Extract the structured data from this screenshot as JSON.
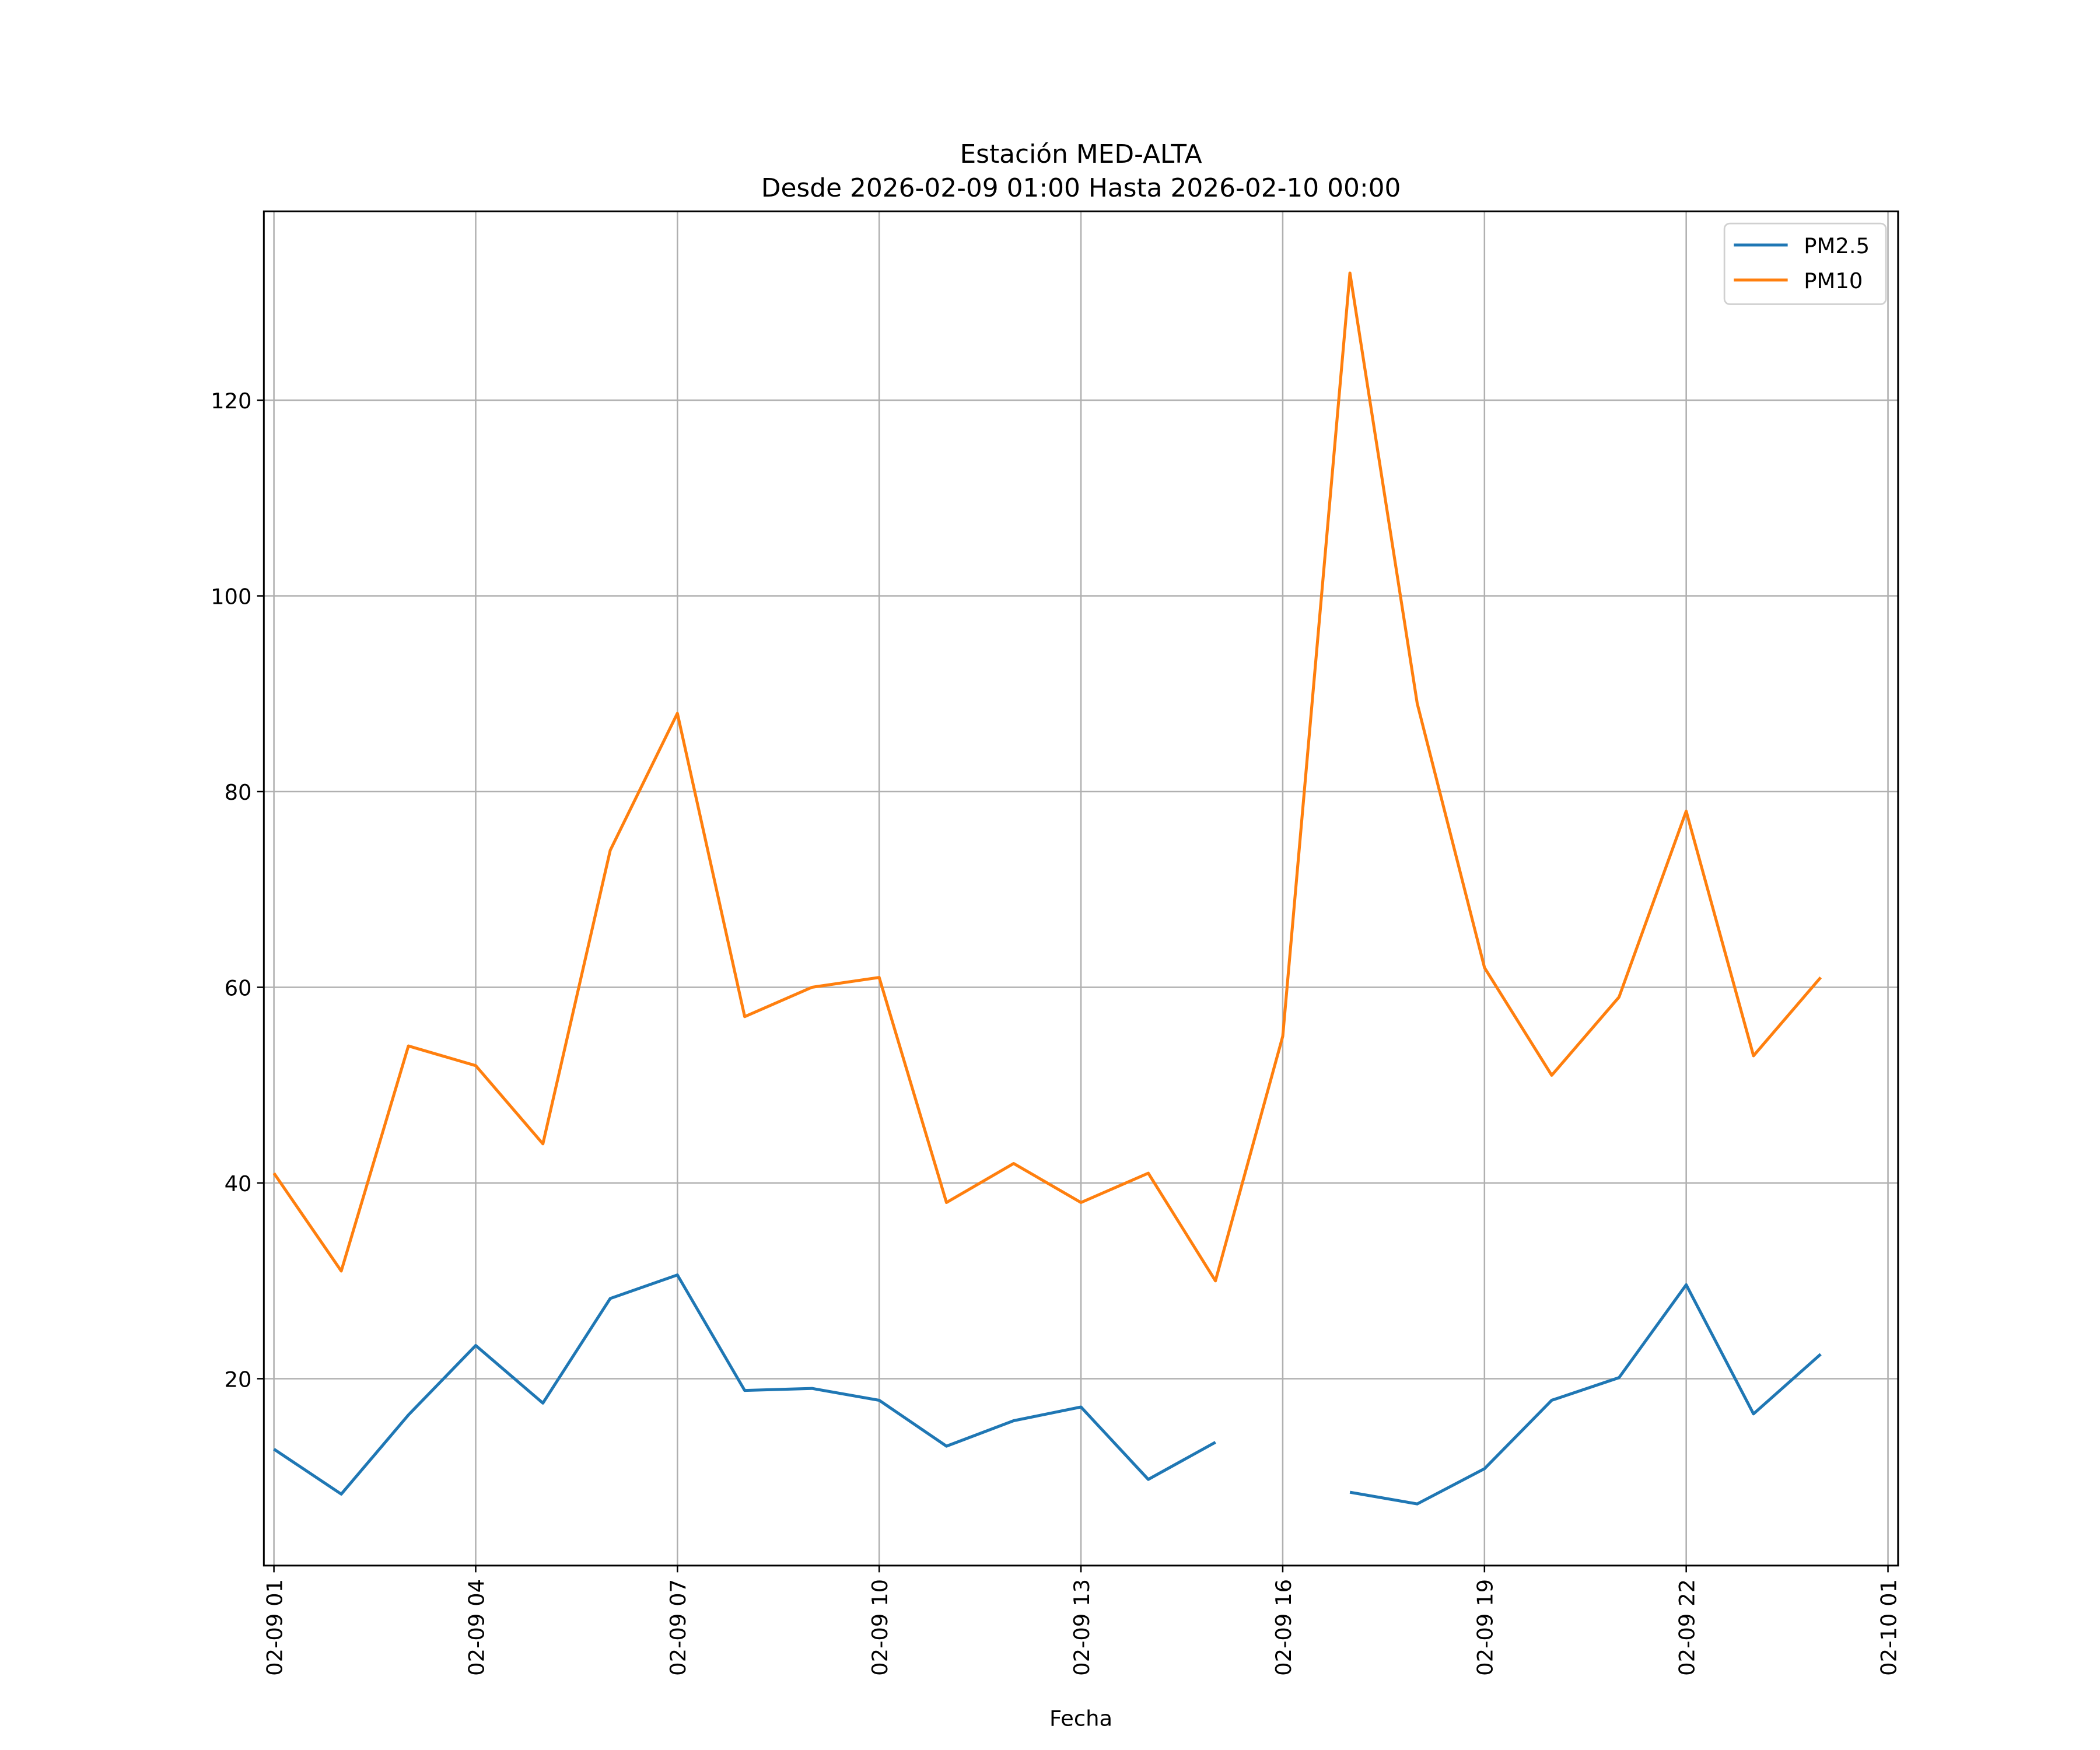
{
  "chart_data": {
    "type": "line",
    "title": "Estación MED-ALTA",
    "subtitle": "Desde 2026-02-09 01:00 Hasta 2026-02-10 00:00",
    "xlabel": "Fecha",
    "ylabel": "",
    "x_hours": [
      1,
      2,
      3,
      4,
      5,
      6,
      7,
      8,
      9,
      10,
      11,
      12,
      13,
      14,
      15,
      16,
      17,
      18,
      19,
      20,
      21,
      22,
      23,
      24
    ],
    "xlim": [
      0.85,
      25.15
    ],
    "ylim": [
      0.9,
      139.3
    ],
    "grid": true,
    "legend_position": "top-right",
    "xticks": [
      {
        "hour": 1,
        "label": "02-09 01"
      },
      {
        "hour": 4,
        "label": "02-09 04"
      },
      {
        "hour": 7,
        "label": "02-09 07"
      },
      {
        "hour": 10,
        "label": "02-09 10"
      },
      {
        "hour": 13,
        "label": "02-09 13"
      },
      {
        "hour": 16,
        "label": "02-09 16"
      },
      {
        "hour": 19,
        "label": "02-09 19"
      },
      {
        "hour": 22,
        "label": "02-09 22"
      },
      {
        "hour": 25,
        "label": "02-10 01"
      }
    ],
    "yticks": [
      {
        "value": 20,
        "label": "20"
      },
      {
        "value": 40,
        "label": "40"
      },
      {
        "value": 60,
        "label": "60"
      },
      {
        "value": 80,
        "label": "80"
      },
      {
        "value": 100,
        "label": "100"
      },
      {
        "value": 120,
        "label": "120"
      }
    ],
    "series": [
      {
        "name": "PM2.5",
        "color": "#1f77b4",
        "values": [
          12.8,
          8.2,
          16.3,
          23.4,
          17.5,
          28.2,
          30.6,
          18.8,
          19.0,
          17.8,
          13.1,
          15.7,
          17.1,
          9.7,
          13.5,
          null,
          8.4,
          7.2,
          10.8,
          17.8,
          20.1,
          29.6,
          16.4,
          22.5
        ]
      },
      {
        "name": "PM10",
        "color": "#ff7f0e",
        "values": [
          41,
          31,
          54,
          52,
          44,
          74,
          88,
          57,
          60,
          61,
          38,
          42,
          38,
          41,
          30,
          55,
          133,
          89,
          62,
          51,
          59,
          78,
          53,
          61
        ]
      }
    ]
  }
}
